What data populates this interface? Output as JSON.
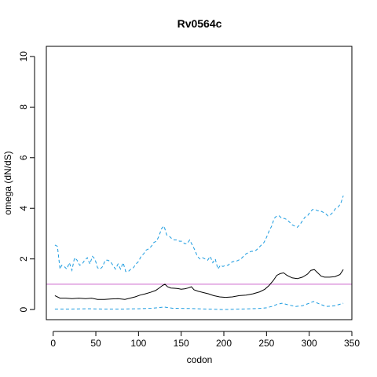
{
  "chart_data": {
    "type": "line",
    "title": "Rv0564c",
    "xlabel": "codon",
    "ylabel": "omega (dN/dS)",
    "xlim": [
      -8,
      350
    ],
    "ylim": [
      -0.4,
      10.4
    ],
    "x_ticks": [
      0,
      50,
      100,
      150,
      200,
      250,
      300,
      350
    ],
    "y_ticks": [
      0,
      2,
      4,
      6,
      8,
      10
    ],
    "grid": false,
    "reference_line": {
      "y": 1,
      "color": "#cc66cc"
    },
    "series": [
      {
        "style": "dashed",
        "color": "#1a9be0",
        "points": [
          [
            2,
            2.55
          ],
          [
            5,
            2.5
          ],
          [
            8,
            1.6
          ],
          [
            10,
            1.75
          ],
          [
            13,
            1.7
          ],
          [
            16,
            1.6
          ],
          [
            19,
            1.85
          ],
          [
            22,
            1.55
          ],
          [
            25,
            2.05
          ],
          [
            28,
            1.95
          ],
          [
            31,
            1.75
          ],
          [
            34,
            1.8
          ],
          [
            37,
            1.95
          ],
          [
            40,
            2.05
          ],
          [
            43,
            1.8
          ],
          [
            46,
            2.1
          ],
          [
            49,
            2.0
          ],
          [
            52,
            1.65
          ],
          [
            55,
            1.6
          ],
          [
            58,
            1.7
          ],
          [
            61,
            1.95
          ],
          [
            64,
            1.95
          ],
          [
            67,
            1.9
          ],
          [
            70,
            1.75
          ],
          [
            73,
            1.6
          ],
          [
            76,
            1.8
          ],
          [
            79,
            1.6
          ],
          [
            82,
            1.85
          ],
          [
            85,
            1.5
          ],
          [
            88,
            1.5
          ],
          [
            91,
            1.6
          ],
          [
            94,
            1.65
          ],
          [
            97,
            1.8
          ],
          [
            100,
            1.9
          ],
          [
            103,
            2.1
          ],
          [
            106,
            2.2
          ],
          [
            109,
            2.35
          ],
          [
            112,
            2.4
          ],
          [
            115,
            2.5
          ],
          [
            118,
            2.65
          ],
          [
            121,
            2.7
          ],
          [
            124,
            2.9
          ],
          [
            127,
            3.2
          ],
          [
            130,
            3.3
          ],
          [
            133,
            2.95
          ],
          [
            136,
            2.9
          ],
          [
            139,
            2.8
          ],
          [
            142,
            2.75
          ],
          [
            145,
            2.75
          ],
          [
            148,
            2.7
          ],
          [
            151,
            2.7
          ],
          [
            154,
            2.6
          ],
          [
            157,
            2.6
          ],
          [
            160,
            2.75
          ],
          [
            163,
            2.55
          ],
          [
            166,
            2.35
          ],
          [
            169,
            2.1
          ],
          [
            172,
            2.0
          ],
          [
            175,
            2.05
          ],
          [
            178,
            2.0
          ],
          [
            181,
            1.95
          ],
          [
            184,
            2.1
          ],
          [
            187,
            1.85
          ],
          [
            190,
            2.0
          ],
          [
            193,
            1.6
          ],
          [
            196,
            1.75
          ],
          [
            199,
            1.7
          ],
          [
            202,
            1.75
          ],
          [
            205,
            1.75
          ],
          [
            208,
            1.85
          ],
          [
            211,
            1.9
          ],
          [
            214,
            1.9
          ],
          [
            217,
            1.95
          ],
          [
            220,
            2.0
          ],
          [
            223,
            2.1
          ],
          [
            226,
            2.2
          ],
          [
            229,
            2.25
          ],
          [
            232,
            2.3
          ],
          [
            235,
            2.3
          ],
          [
            238,
            2.35
          ],
          [
            241,
            2.45
          ],
          [
            244,
            2.55
          ],
          [
            247,
            2.65
          ],
          [
            250,
            2.85
          ],
          [
            253,
            3.1
          ],
          [
            256,
            3.3
          ],
          [
            259,
            3.6
          ],
          [
            262,
            3.7
          ],
          [
            265,
            3.7
          ],
          [
            268,
            3.6
          ],
          [
            271,
            3.6
          ],
          [
            274,
            3.55
          ],
          [
            277,
            3.45
          ],
          [
            280,
            3.35
          ],
          [
            283,
            3.3
          ],
          [
            286,
            3.25
          ],
          [
            289,
            3.35
          ],
          [
            292,
            3.5
          ],
          [
            295,
            3.65
          ],
          [
            298,
            3.7
          ],
          [
            301,
            3.85
          ],
          [
            304,
            3.95
          ],
          [
            307,
            3.95
          ],
          [
            310,
            3.9
          ],
          [
            313,
            3.9
          ],
          [
            316,
            3.85
          ],
          [
            319,
            3.8
          ],
          [
            322,
            3.7
          ],
          [
            325,
            3.75
          ],
          [
            328,
            3.85
          ],
          [
            331,
            4.0
          ],
          [
            334,
            4.05
          ],
          [
            337,
            4.2
          ],
          [
            340,
            4.5
          ]
        ]
      },
      {
        "style": "solid",
        "color": "#000000",
        "points": [
          [
            2,
            0.55
          ],
          [
            8,
            0.45
          ],
          [
            15,
            0.45
          ],
          [
            22,
            0.43
          ],
          [
            30,
            0.45
          ],
          [
            38,
            0.43
          ],
          [
            45,
            0.45
          ],
          [
            52,
            0.4
          ],
          [
            60,
            0.4
          ],
          [
            68,
            0.42
          ],
          [
            76,
            0.43
          ],
          [
            84,
            0.4
          ],
          [
            90,
            0.45
          ],
          [
            96,
            0.5
          ],
          [
            102,
            0.57
          ],
          [
            108,
            0.62
          ],
          [
            114,
            0.68
          ],
          [
            120,
            0.75
          ],
          [
            125,
            0.87
          ],
          [
            128,
            0.95
          ],
          [
            131,
            1.0
          ],
          [
            134,
            0.9
          ],
          [
            138,
            0.85
          ],
          [
            142,
            0.84
          ],
          [
            146,
            0.83
          ],
          [
            150,
            0.8
          ],
          [
            154,
            0.82
          ],
          [
            158,
            0.85
          ],
          [
            162,
            0.9
          ],
          [
            165,
            0.78
          ],
          [
            170,
            0.72
          ],
          [
            176,
            0.67
          ],
          [
            182,
            0.62
          ],
          [
            188,
            0.55
          ],
          [
            195,
            0.5
          ],
          [
            202,
            0.48
          ],
          [
            210,
            0.5
          ],
          [
            218,
            0.55
          ],
          [
            226,
            0.57
          ],
          [
            234,
            0.62
          ],
          [
            242,
            0.7
          ],
          [
            248,
            0.8
          ],
          [
            253,
            0.95
          ],
          [
            258,
            1.15
          ],
          [
            262,
            1.35
          ],
          [
            266,
            1.42
          ],
          [
            270,
            1.45
          ],
          [
            274,
            1.35
          ],
          [
            280,
            1.25
          ],
          [
            286,
            1.22
          ],
          [
            292,
            1.28
          ],
          [
            298,
            1.4
          ],
          [
            302,
            1.55
          ],
          [
            306,
            1.58
          ],
          [
            310,
            1.45
          ],
          [
            314,
            1.32
          ],
          [
            318,
            1.28
          ],
          [
            324,
            1.28
          ],
          [
            330,
            1.3
          ],
          [
            336,
            1.38
          ],
          [
            340,
            1.58
          ]
        ]
      },
      {
        "style": "dashed",
        "color": "#1a9be0",
        "points": [
          [
            2,
            0.02
          ],
          [
            20,
            0.02
          ],
          [
            40,
            0.03
          ],
          [
            60,
            0.02
          ],
          [
            80,
            0.02
          ],
          [
            100,
            0.03
          ],
          [
            115,
            0.05
          ],
          [
            125,
            0.08
          ],
          [
            130,
            0.1
          ],
          [
            140,
            0.05
          ],
          [
            160,
            0.04
          ],
          [
            180,
            0.02
          ],
          [
            200,
            0.0
          ],
          [
            220,
            0.02
          ],
          [
            240,
            0.04
          ],
          [
            250,
            0.07
          ],
          [
            256,
            0.12
          ],
          [
            262,
            0.2
          ],
          [
            268,
            0.25
          ],
          [
            276,
            0.18
          ],
          [
            284,
            0.12
          ],
          [
            292,
            0.15
          ],
          [
            300,
            0.25
          ],
          [
            305,
            0.32
          ],
          [
            312,
            0.22
          ],
          [
            320,
            0.12
          ],
          [
            330,
            0.15
          ],
          [
            340,
            0.25
          ]
        ]
      }
    ]
  }
}
